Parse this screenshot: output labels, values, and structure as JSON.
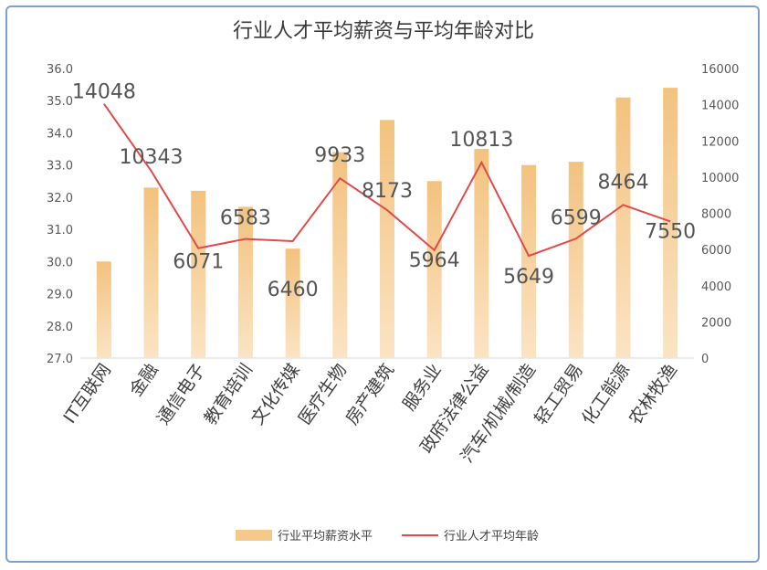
{
  "chart_data": {
    "type": "bar",
    "title": "行业人才平均薪资与平均年龄对比",
    "categories": [
      "IT互联网",
      "金融",
      "通信电子",
      "教育培训",
      "文化传媒",
      "医疗生物",
      "房产建筑",
      "服务业",
      "政府法律公益",
      "汽车/机械/制造",
      "轻工贸易",
      "化工能源",
      "农林牧渔"
    ],
    "series": [
      {
        "name": "行业平均薪资水平",
        "axis": "left",
        "kind": "bar",
        "color": "#f5c98a",
        "values": [
          30.0,
          32.3,
          32.2,
          31.7,
          30.4,
          33.4,
          34.4,
          32.5,
          33.5,
          33.0,
          33.1,
          35.1,
          35.4
        ]
      },
      {
        "name": "行业人才平均年龄",
        "axis": "right",
        "kind": "line",
        "color": "#e24a4a",
        "values": [
          14048,
          10343,
          6071,
          6583,
          6460,
          9933,
          8173,
          5964,
          10813,
          5649,
          6599,
          8464,
          7550
        ],
        "labels": [
          "14048",
          "10343",
          "6071",
          "6583",
          "6460",
          "9933",
          "8173",
          "5964",
          "10813",
          "5649",
          "6599",
          "8464",
          "7550"
        ]
      }
    ],
    "yLeft": {
      "min": 27,
      "max": 36,
      "step": 1,
      "ticks": [
        "27.0",
        "28.0",
        "29.0",
        "30.0",
        "31.0",
        "32.0",
        "33.0",
        "34.0",
        "35.0",
        "36.0"
      ]
    },
    "yRight": {
      "min": 0,
      "max": 16000,
      "step": 2000,
      "ticks": [
        "0",
        "2000",
        "4000",
        "6000",
        "8000",
        "10000",
        "12000",
        "14000",
        "16000"
      ]
    },
    "legend": {
      "position": "bottom"
    },
    "grid": false
  }
}
